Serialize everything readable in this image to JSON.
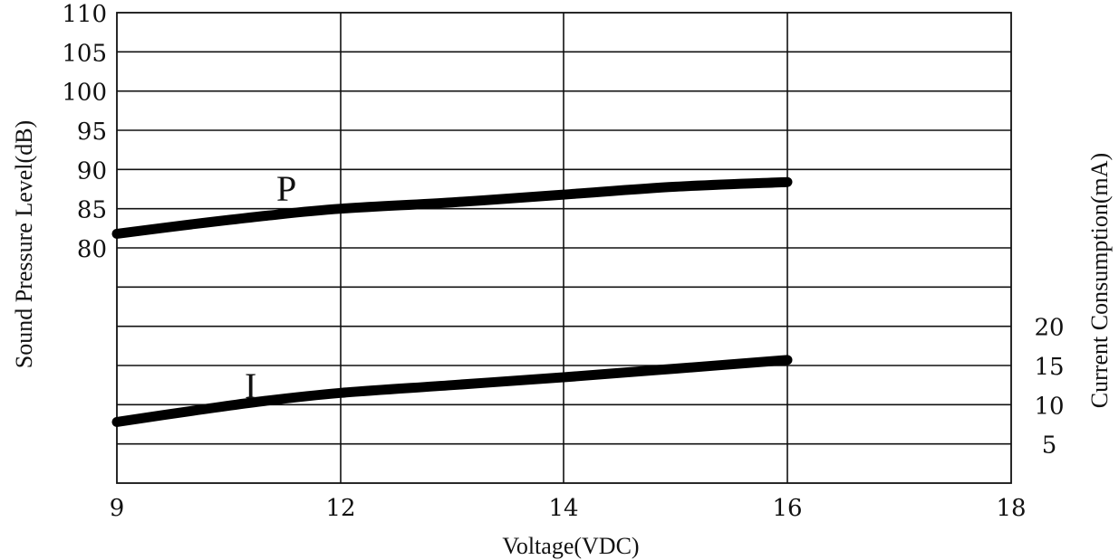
{
  "chart_data": {
    "type": "line",
    "title": "",
    "xlabel": "Voltage(VDC)",
    "ylabel_left": "Sound Pressure Level(dB)",
    "ylabel_right": "Current Consumption(mA)",
    "x_ticks": [
      "9",
      "12",
      "14",
      "16",
      "18"
    ],
    "y_left_ticks": [
      "110",
      "105",
      "100",
      "95",
      "90",
      "85",
      "80"
    ],
    "y_right_ticks": [
      "20",
      "15",
      "10",
      "5"
    ],
    "grid": true,
    "legend": "none",
    "series": [
      {
        "name": "P",
        "axis": "left",
        "unit": "dB",
        "x": [
          9,
          10,
          11,
          12,
          13,
          14,
          15,
          16
        ],
        "values": [
          81.8,
          83.0,
          84.1,
          85.0,
          85.8,
          86.8,
          87.8,
          88.4
        ]
      },
      {
        "name": "I",
        "axis": "right",
        "unit": "mA",
        "x": [
          9,
          10,
          11,
          12,
          13,
          14,
          15,
          16
        ],
        "values": [
          7.8,
          9.2,
          10.5,
          11.5,
          12.5,
          13.5,
          14.6,
          15.7
        ]
      }
    ]
  }
}
